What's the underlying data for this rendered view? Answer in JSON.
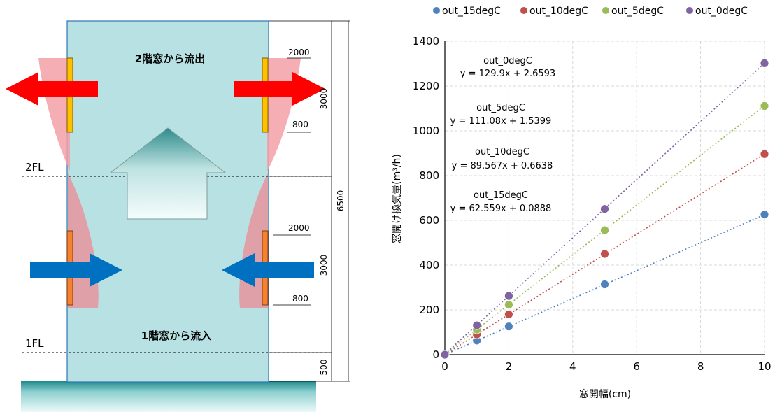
{
  "diagram": {
    "top_text": "2階窓から流出",
    "bottom_text": "1階窓から流入",
    "fl2": "2FL",
    "fl1": "1FL",
    "dims": {
      "upper_top": "2000",
      "upper_bottom": "800",
      "upper_span": "3000",
      "lower_top": "2000",
      "lower_bottom": "800",
      "lower_span": "3000",
      "total": "6500",
      "base": "500"
    },
    "colors": {
      "building": "#b7e1e3",
      "outflow_arrow": "#ff0000",
      "inflow_arrow": "#0070c0",
      "upper_window": "#ffc000",
      "lower_window": "#f58231",
      "plume": "#f4a0a8"
    }
  },
  "chart_data": {
    "type": "scatter",
    "xlabel": "窓開幅(cm)",
    "ylabel": "窓開け換気量(m³/h)",
    "xlim": [
      0,
      10
    ],
    "ylim": [
      0,
      1400
    ],
    "xticks": [
      "0",
      "2",
      "4",
      "6",
      "8",
      "10"
    ],
    "yticks": [
      "0",
      "200",
      "400",
      "600",
      "800",
      "1000",
      "1200",
      "1400"
    ],
    "grid": true,
    "legend_position": "top",
    "series": [
      {
        "name": "out_15degC",
        "color": "#4f81bd",
        "x": [
          0,
          1,
          2,
          5,
          10
        ],
        "y": [
          0,
          63,
          126,
          314,
          626
        ],
        "trend_slope": 62.559,
        "trend_intercept": 0.0888
      },
      {
        "name": "out_10degC",
        "color": "#c0504d",
        "x": [
          0,
          1,
          2,
          5,
          10
        ],
        "y": [
          0,
          90,
          180,
          450,
          896
        ],
        "trend_slope": 89.567,
        "trend_intercept": 0.6638
      },
      {
        "name": "out_5degC",
        "color": "#9bbb59",
        "x": [
          0,
          1,
          2,
          5,
          10
        ],
        "y": [
          0,
          112,
          223,
          556,
          1111
        ],
        "trend_slope": 111.08,
        "trend_intercept": 1.5399
      },
      {
        "name": "out_0degC",
        "color": "#8064a2",
        "x": [
          0,
          1,
          2,
          5,
          10
        ],
        "y": [
          0,
          131,
          262,
          651,
          1302
        ],
        "trend_slope": 129.9,
        "trend_intercept": 2.6593
      }
    ],
    "annotations": [
      {
        "series": "out_0degC",
        "name": "out_0degC",
        "equation": "y = 129.9x + 2.6593"
      },
      {
        "series": "out_5degC",
        "name": "out_5degC",
        "equation": "y = 111.08x + 1.5399"
      },
      {
        "series": "out_10degC",
        "name": "out_10degC",
        "equation": "y = 89.567x + 0.6638"
      },
      {
        "series": "out_15degC",
        "name": "out_15degC",
        "equation": "y = 62.559x + 0.0888"
      }
    ]
  }
}
